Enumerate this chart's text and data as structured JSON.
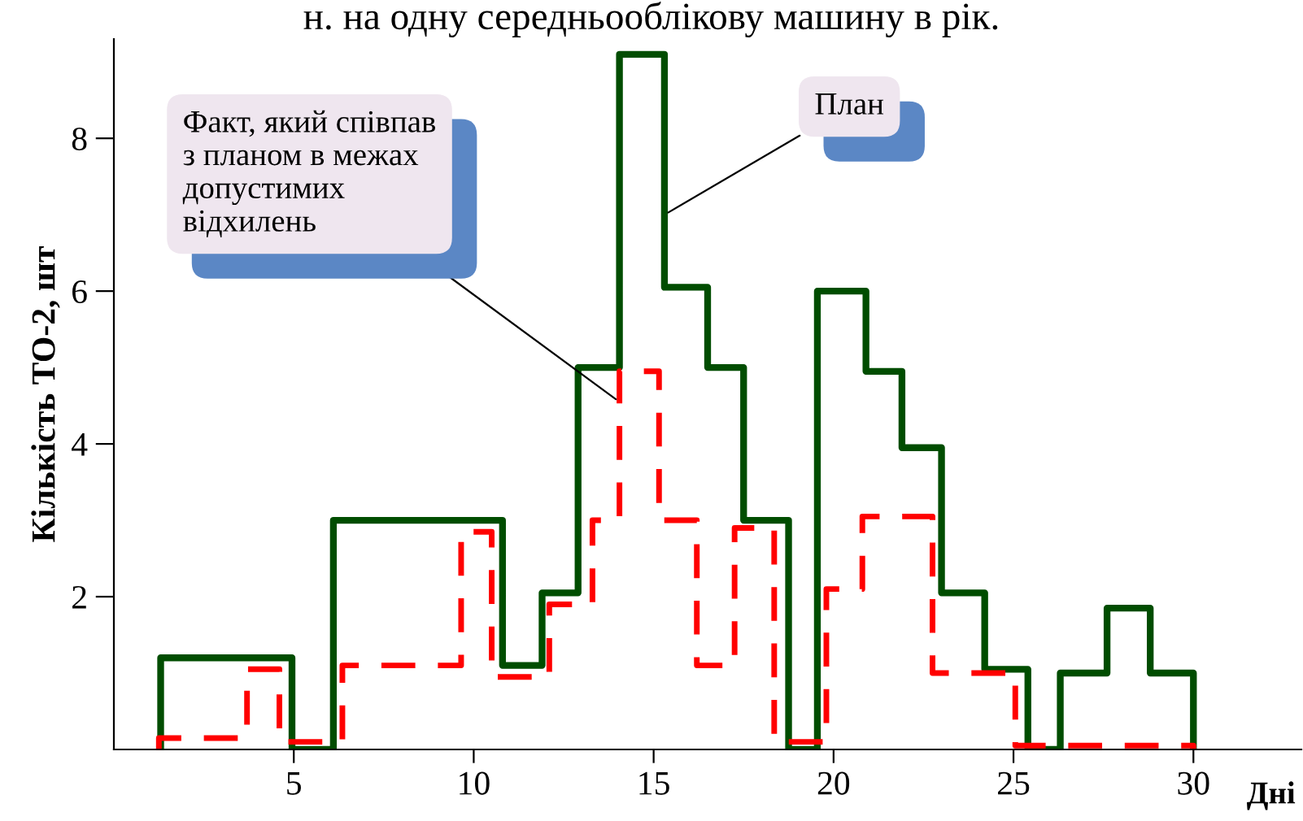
{
  "chart_data": {
    "type": "step",
    "title": "н. на одну середньооблікову машину в рік.",
    "xlabel": "Дні",
    "ylabel": "Кількість ТО-2, шт",
    "xlim": [
      0,
      33
    ],
    "ylim": [
      0,
      9.3
    ],
    "xticks": [
      5,
      10,
      15,
      20,
      25,
      30
    ],
    "yticks": [
      2,
      4,
      6,
      8
    ],
    "grid": false,
    "series": [
      {
        "color": "#004d00",
        "line_style": "solid",
        "x": [
          1.3,
          1.3,
          4.95,
          6.1,
          10.8,
          11.9,
          12.9,
          14.05,
          15.3,
          16.5,
          17.5,
          18.75,
          19.55,
          20.9,
          21.9,
          23.0,
          24.2,
          25.4,
          26.3,
          27.6,
          28.8,
          30.0
        ],
        "values": [
          0,
          1.2,
          0,
          3.0,
          1.1,
          2.05,
          5.0,
          9.1,
          6.05,
          5.0,
          3.0,
          0,
          6.0,
          4.95,
          3.95,
          2.05,
          1.05,
          0,
          1.0,
          1.85,
          1.0,
          0
        ]
      },
      {
        "color": "#ff0000",
        "line_style": "dashed",
        "x": [
          1.25,
          1.25,
          3.7,
          4.6,
          6.35,
          9.65,
          10.5,
          12.1,
          13.3,
          14.05,
          15.15,
          16.2,
          17.25,
          18.35,
          19.8,
          20.8,
          22.75,
          25.05,
          30.0
        ],
        "values": [
          0,
          0.15,
          1.05,
          0.1,
          1.1,
          2.85,
          0.95,
          1.9,
          3.0,
          4.95,
          3.0,
          1.1,
          2.9,
          0.1,
          2.1,
          3.05,
          1.0,
          0.05,
          0
        ]
      }
    ],
    "annotations": [
      {
        "text": "Факт, який співпав\nз планом в межах\nдопустимих\nвідхилень",
        "x": 14.05,
        "y": 4.55
      },
      {
        "text": "План",
        "x": 15.3,
        "y": 7.0
      }
    ]
  }
}
